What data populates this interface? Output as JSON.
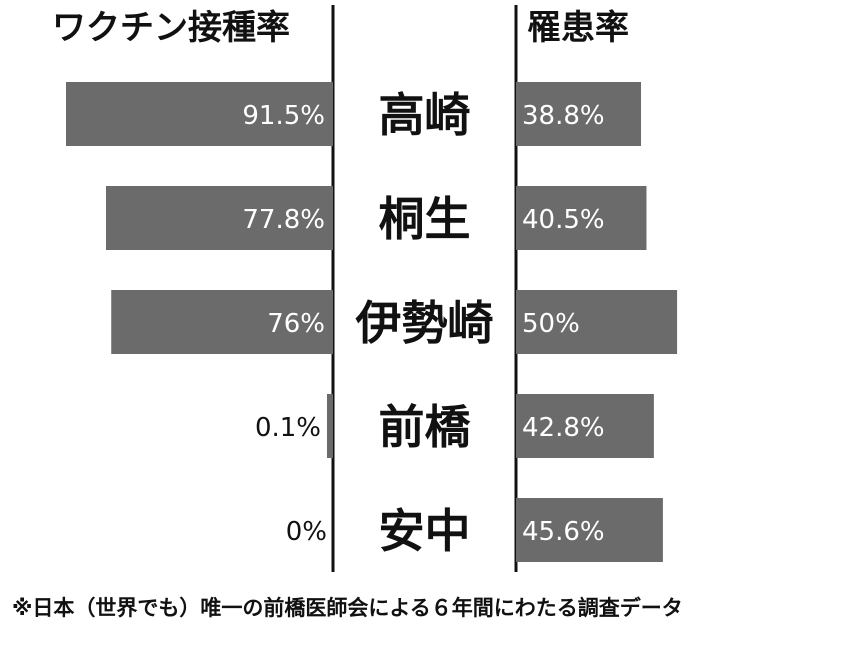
{
  "left_heading": "ワクチン接種率",
  "right_heading": "罹患率",
  "footnote": "※日本（世界でも）唯一の前橋医師会による６年間にわたる調査データ",
  "colors": {
    "bar": "#6b6b6b",
    "bar_label": "#ffffff",
    "outside_label": "#111111",
    "axis": "#111111",
    "city_label": "#111111"
  },
  "chart_data": {
    "type": "bar",
    "categories": [
      "高崎",
      "桐生",
      "伊勢崎",
      "前橋",
      "安中"
    ],
    "series": [
      {
        "name": "ワクチン接種率",
        "values": [
          91.5,
          77.8,
          76,
          0.1,
          0
        ],
        "labels": [
          "91.5%",
          "77.8%",
          "76%",
          "0.1%",
          "0%"
        ]
      },
      {
        "name": "罹患率",
        "values": [
          38.8,
          40.5,
          50,
          42.8,
          45.6
        ],
        "labels": [
          "38.8%",
          "40.5%",
          "50%",
          "42.8%",
          "45.6%"
        ]
      }
    ],
    "xlabel": "",
    "ylabel": ""
  }
}
